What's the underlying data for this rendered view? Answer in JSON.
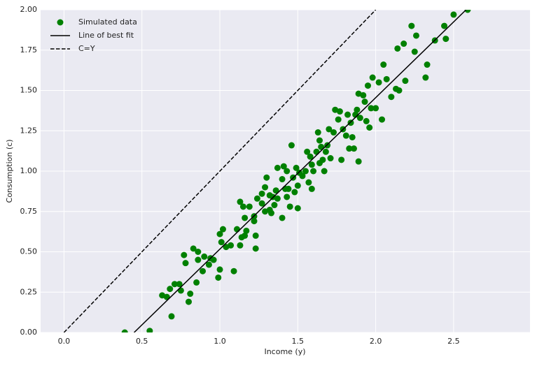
{
  "chart_data": {
    "type": "scatter",
    "x_label": "Income (y)",
    "y_label": "Consumption (c)",
    "xlim": [
      -0.15,
      2.99
    ],
    "ylim": [
      0,
      2
    ],
    "xticks": [
      {
        "value": 0,
        "label": "0.0"
      },
      0.5,
      {
        "value": 1,
        "label": "1.0"
      },
      1.5,
      {
        "value": 2,
        "label": "2.0"
      },
      2.5
    ],
    "yticks": [
      {
        "value": 0,
        "label": "0.00"
      },
      {
        "value": 0.25,
        "label": "0.25"
      },
      {
        "value": 0.5,
        "label": "0.50"
      },
      {
        "value": 0.75,
        "label": "0.75"
      },
      {
        "value": 1,
        "label": "1.00"
      },
      {
        "value": 1.25,
        "label": "1.25"
      },
      {
        "value": 1.5,
        "label": "1.50"
      },
      {
        "value": 1.75,
        "label": "1.75"
      },
      {
        "value": 2,
        "label": "2.00"
      }
    ],
    "grid": true,
    "legend": "upper left",
    "series": [
      {
        "name": "Simulated data",
        "color": "#008000",
        "mode": "markers",
        "x": [
          0.39,
          0.55,
          0.63,
          0.66,
          0.69,
          0.68,
          0.71,
          0.74,
          0.75,
          0.77,
          0.78,
          0.81,
          0.8,
          0.83,
          0.86,
          0.86,
          0.85,
          0.89,
          0.9,
          0.93,
          0.94,
          0.96,
          0.99,
          1.0,
          1.0,
          1.02,
          1.01,
          1.04,
          1.07,
          1.09,
          1.11,
          1.13,
          1.14,
          1.13,
          1.15,
          1.16,
          1.17,
          1.16,
          1.19,
          1.22,
          1.22,
          1.23,
          1.23,
          1.24,
          1.27,
          1.27,
          1.29,
          1.29,
          1.3,
          1.32,
          1.32,
          1.33,
          1.34,
          1.35,
          1.36,
          1.37,
          1.37,
          1.4,
          1.4,
          1.41,
          1.42,
          1.43,
          1.43,
          1.44,
          1.45,
          1.46,
          1.47,
          1.48,
          1.49,
          1.5,
          1.5,
          1.51,
          1.53,
          1.55,
          1.56,
          1.57,
          1.58,
          1.59,
          1.59,
          1.6,
          1.62,
          1.63,
          1.64,
          1.64,
          1.65,
          1.66,
          1.67,
          1.68,
          1.69,
          1.7,
          1.71,
          1.73,
          1.74,
          1.76,
          1.77,
          1.78,
          1.79,
          1.81,
          1.82,
          1.83,
          1.84,
          1.85,
          1.86,
          1.87,
          1.88,
          1.89,
          1.89,
          1.9,
          1.92,
          1.93,
          1.94,
          1.95,
          1.96,
          1.97,
          1.98,
          2.0,
          2.02,
          2.04,
          2.05,
          2.07,
          2.1,
          2.13,
          2.14,
          2.15,
          2.18,
          2.19,
          2.23,
          2.25,
          2.26,
          2.32,
          2.33,
          2.38,
          2.44,
          2.45,
          2.5,
          2.59
        ],
        "values": [
          0.0,
          0.01,
          0.23,
          0.22,
          0.1,
          0.27,
          0.3,
          0.3,
          0.26,
          0.48,
          0.43,
          0.24,
          0.19,
          0.52,
          0.5,
          0.45,
          0.31,
          0.38,
          0.47,
          0.42,
          0.46,
          0.45,
          0.34,
          0.39,
          0.61,
          0.64,
          0.56,
          0.53,
          0.54,
          0.38,
          0.64,
          0.81,
          0.59,
          0.54,
          0.78,
          0.71,
          0.63,
          0.6,
          0.78,
          0.69,
          0.72,
          0.6,
          0.52,
          0.83,
          0.86,
          0.8,
          0.75,
          0.9,
          0.96,
          0.76,
          0.85,
          0.74,
          0.84,
          0.79,
          0.88,
          1.02,
          0.83,
          0.71,
          0.95,
          1.03,
          0.89,
          0.84,
          1.0,
          0.89,
          0.78,
          1.16,
          0.96,
          0.87,
          1.02,
          0.91,
          0.77,
          0.99,
          0.97,
          1.0,
          1.12,
          0.93,
          1.09,
          1.04,
          0.89,
          1.0,
          1.12,
          1.24,
          1.05,
          1.19,
          1.15,
          1.07,
          1.0,
          1.12,
          1.16,
          1.26,
          1.08,
          1.24,
          1.38,
          1.32,
          1.37,
          1.07,
          1.26,
          1.22,
          1.35,
          1.14,
          1.3,
          1.21,
          1.14,
          1.35,
          1.38,
          1.48,
          1.06,
          1.33,
          1.47,
          1.43,
          1.31,
          1.53,
          1.27,
          1.39,
          1.58,
          1.39,
          1.55,
          1.32,
          1.66,
          1.57,
          1.46,
          1.51,
          1.76,
          1.5,
          1.79,
          1.56,
          1.9,
          1.74,
          1.84,
          1.58,
          1.66,
          1.81,
          1.9,
          1.82,
          1.97,
          2.0
        ]
      },
      {
        "name": "Line of best fit",
        "color": "#000000",
        "mode": "line",
        "dash": false,
        "x": [
          0.45,
          2.58
        ],
        "values": [
          0,
          2
        ]
      },
      {
        "name": "C=Y",
        "color": "#000000",
        "mode": "line",
        "dash": true,
        "x": [
          0,
          2
        ],
        "values": [
          0,
          2
        ]
      }
    ]
  }
}
